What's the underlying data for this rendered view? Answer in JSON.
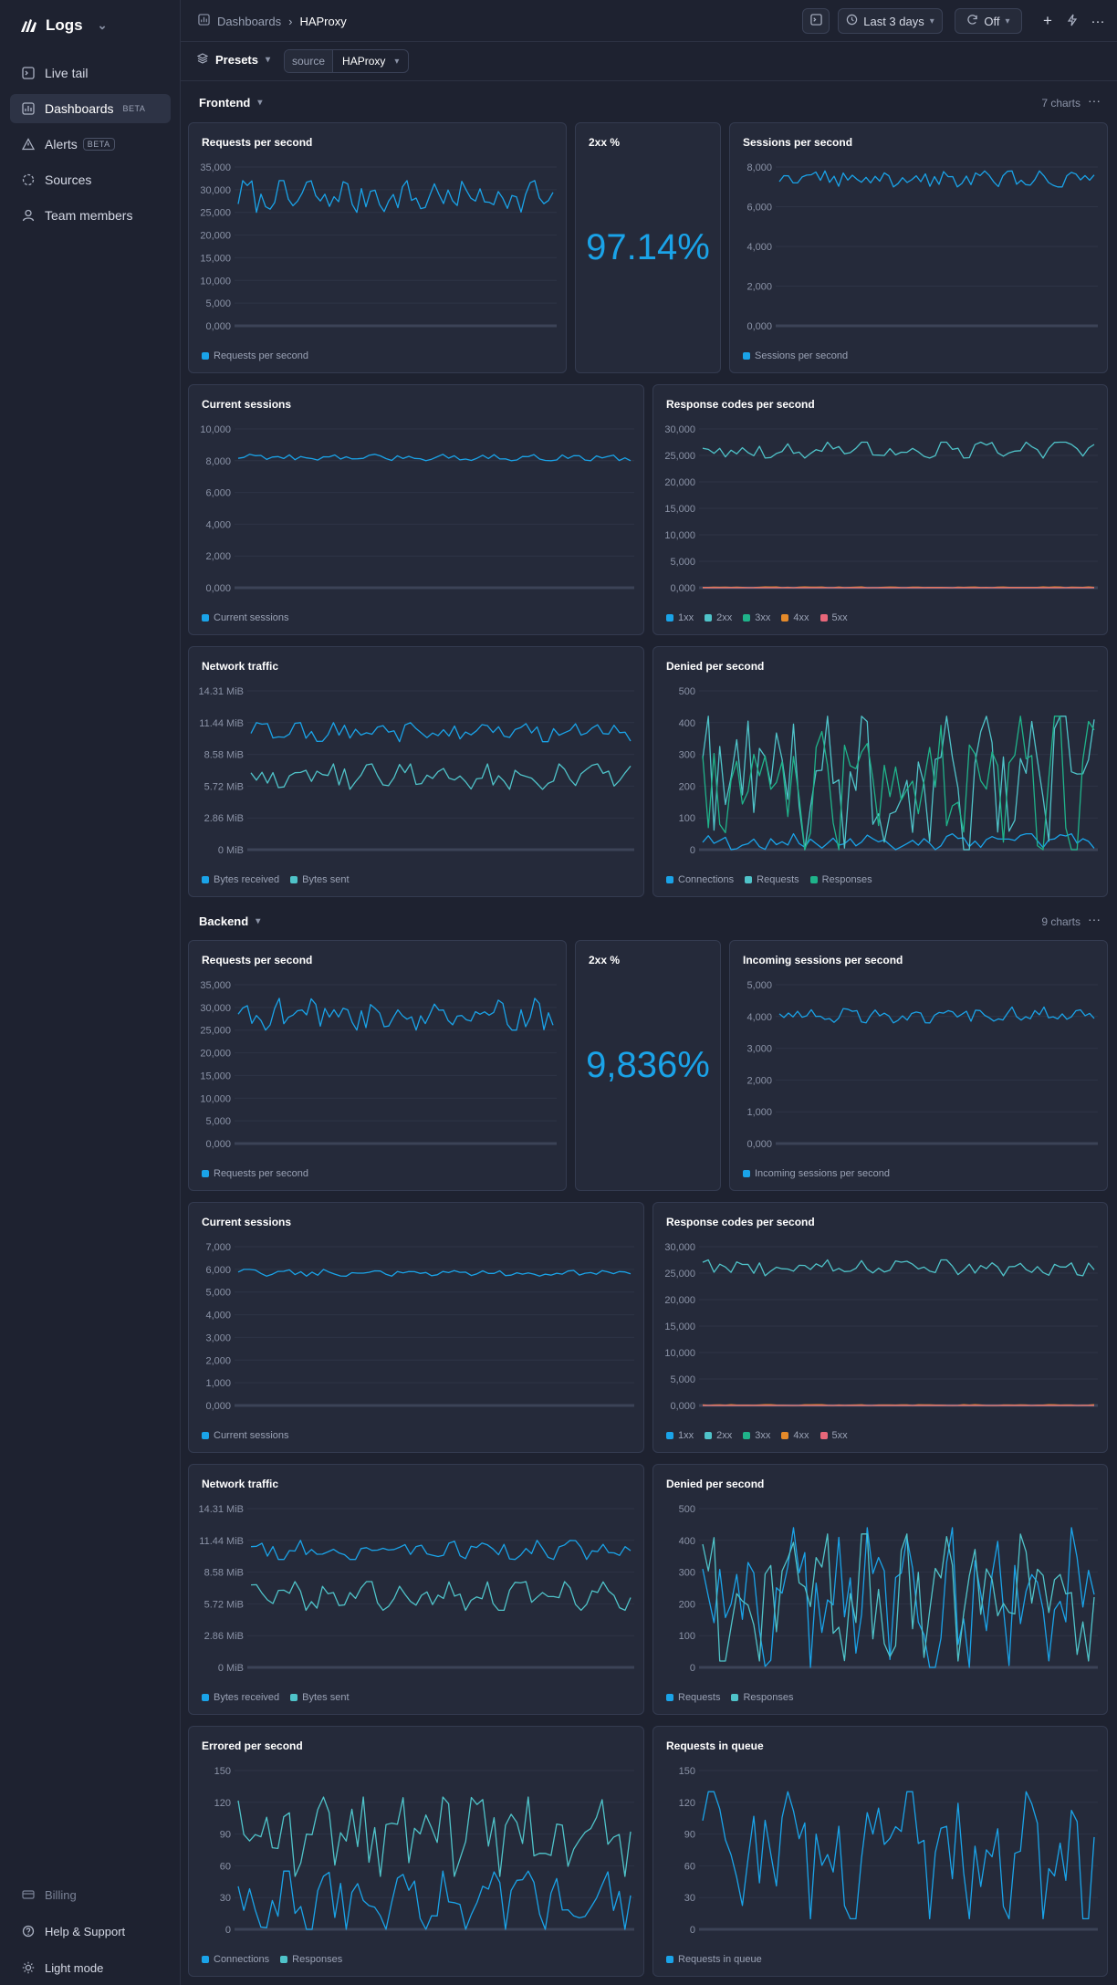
{
  "app": {
    "name": "Logs"
  },
  "sidebar": {
    "items": [
      {
        "label": "Live tail",
        "icon": "terminal-icon",
        "badge": ""
      },
      {
        "label": "Dashboards",
        "icon": "dashboard-icon",
        "badge": "BETA"
      },
      {
        "label": "Alerts",
        "icon": "alert-icon",
        "badge": "BETA"
      },
      {
        "label": "Sources",
        "icon": "sources-icon",
        "badge": ""
      },
      {
        "label": "Team members",
        "icon": "user-icon",
        "badge": ""
      }
    ],
    "bottom": [
      {
        "label": "Billing",
        "icon": "card-icon"
      },
      {
        "label": "Help & Support",
        "icon": "help-icon"
      },
      {
        "label": "Light mode",
        "icon": "sun-icon"
      }
    ]
  },
  "breadcrumb": {
    "parent": "Dashboards",
    "current": "HAProxy"
  },
  "toolbar": {
    "time_range": "Last 3 days",
    "refresh": "Off"
  },
  "filters": {
    "presets": "Presets",
    "key": "source",
    "value": "HAProxy"
  },
  "colors": {
    "blue": "#1aa3e8",
    "teal": "#4fc3c9",
    "green": "#1fb38a",
    "orange": "#e58a2a",
    "red": "#e8677a",
    "accent_stat": "#1aa3e8"
  },
  "sections": [
    {
      "title": "Frontend",
      "count": "7 charts"
    },
    {
      "title": "Backend",
      "count": "9 charts"
    }
  ],
  "stats": [
    {
      "title": "2xx %",
      "value": "97.14%"
    },
    {
      "title": "2xx %",
      "value": "9,836%"
    }
  ],
  "chart_data": [
    {
      "type": "line",
      "title": "Requests per second",
      "yticks": [
        "35,000",
        "30,000",
        "25,000",
        "20,000",
        "15,000",
        "10,000",
        "5,000",
        "0,000"
      ],
      "ylim": [
        0,
        35000
      ],
      "series": [
        {
          "name": "Requests per second",
          "color": "#1aa3e8",
          "band": [
            25000,
            32000
          ]
        }
      ]
    },
    {
      "type": "line",
      "title": "Sessions per second",
      "yticks": [
        "8,000",
        "6,000",
        "4,000",
        "2,000",
        "0,000"
      ],
      "ylim": [
        0,
        8000
      ],
      "series": [
        {
          "name": "Sessions per second",
          "color": "#1aa3e8",
          "band": [
            7000,
            7800
          ]
        }
      ]
    },
    {
      "type": "line",
      "title": "Current sessions",
      "yticks": [
        "10,000",
        "8,000",
        "6,000",
        "4,000",
        "2,000",
        "0,000"
      ],
      "ylim": [
        0,
        10000
      ],
      "series": [
        {
          "name": "Current sessions",
          "color": "#1aa3e8",
          "band": [
            8000,
            8400
          ]
        }
      ]
    },
    {
      "type": "line",
      "title": "Response codes per second",
      "yticks": [
        "30,000",
        "25,000",
        "20,000",
        "15,000",
        "10,000",
        "5,000",
        "0,000"
      ],
      "ylim": [
        0,
        30000
      ],
      "series": [
        {
          "name": "1xx",
          "color": "#1aa3e8",
          "band": [
            0,
            0
          ]
        },
        {
          "name": "2xx",
          "color": "#4fc3c9",
          "band": [
            24500,
            27500
          ]
        },
        {
          "name": "3xx",
          "color": "#1fb38a",
          "band": [
            0,
            0
          ]
        },
        {
          "name": "4xx",
          "color": "#e58a2a",
          "band": [
            0,
            150
          ]
        },
        {
          "name": "5xx",
          "color": "#e8677a",
          "band": [
            0,
            0
          ]
        }
      ]
    },
    {
      "type": "line",
      "title": "Network traffic",
      "yticks": [
        "14.31 MiB",
        "11.44 MiB",
        "8.58 MiB",
        "5.72 MiB",
        "2.86 MiB",
        "0 MiB"
      ],
      "ylim": [
        0,
        5
      ],
      "series": [
        {
          "name": "Bytes received",
          "color": "#1aa3e8",
          "band": [
            3.4,
            4
          ]
        },
        {
          "name": "Bytes sent",
          "color": "#4fc3c9",
          "band": [
            1.9,
            2.7
          ]
        }
      ]
    },
    {
      "type": "line",
      "title": "Denied per second",
      "yticks": [
        "500",
        "400",
        "300",
        "200",
        "100",
        "0"
      ],
      "ylim": [
        0,
        500
      ],
      "series": [
        {
          "name": "Connections",
          "color": "#1aa3e8",
          "band": [
            0,
            50
          ]
        },
        {
          "name": "Requests",
          "color": "#4fc3c9",
          "band": [
            0,
            420
          ]
        },
        {
          "name": "Responses",
          "color": "#1fb38a",
          "band": [
            0,
            420
          ]
        }
      ]
    },
    {
      "type": "line",
      "title": "Requests per second",
      "yticks": [
        "35,000",
        "30,000",
        "25,000",
        "20,000",
        "15,000",
        "10,000",
        "5,000",
        "0,000"
      ],
      "ylim": [
        0,
        35000
      ],
      "series": [
        {
          "name": "Requests per second",
          "color": "#1aa3e8",
          "band": [
            25000,
            32000
          ]
        }
      ]
    },
    {
      "type": "line",
      "title": "Incoming sessions per second",
      "yticks": [
        "5,000",
        "4,000",
        "3,000",
        "2,000",
        "1,000",
        "0,000"
      ],
      "ylim": [
        0,
        5000
      ],
      "series": [
        {
          "name": "Incoming sessions per second",
          "color": "#1aa3e8",
          "band": [
            3800,
            4300
          ]
        }
      ]
    },
    {
      "type": "line",
      "title": "Current sessions",
      "yticks": [
        "7,000",
        "6,000",
        "5,000",
        "4,000",
        "3,000",
        "2,000",
        "1,000",
        "0,000"
      ],
      "ylim": [
        0,
        7000
      ],
      "series": [
        {
          "name": "Current sessions",
          "color": "#1aa3e8",
          "band": [
            5700,
            6000
          ]
        }
      ]
    },
    {
      "type": "line",
      "title": "Response codes per second",
      "yticks": [
        "30,000",
        "25,000",
        "20,000",
        "15,000",
        "10,000",
        "5,000",
        "0,000"
      ],
      "ylim": [
        0,
        30000
      ],
      "series": [
        {
          "name": "1xx",
          "color": "#1aa3e8",
          "band": [
            0,
            0
          ]
        },
        {
          "name": "2xx",
          "color": "#4fc3c9",
          "band": [
            24500,
            27500
          ]
        },
        {
          "name": "3xx",
          "color": "#1fb38a",
          "band": [
            0,
            0
          ]
        },
        {
          "name": "4xx",
          "color": "#e58a2a",
          "band": [
            0,
            150
          ]
        },
        {
          "name": "5xx",
          "color": "#e8677a",
          "band": [
            0,
            0
          ]
        }
      ]
    },
    {
      "type": "line",
      "title": "Network traffic",
      "yticks": [
        "14.31 MiB",
        "11.44 MiB",
        "8.58 MiB",
        "5.72 MiB",
        "2.86 MiB",
        "0 MiB"
      ],
      "ylim": [
        0,
        5
      ],
      "series": [
        {
          "name": "Bytes received",
          "color": "#1aa3e8",
          "band": [
            3.4,
            4
          ]
        },
        {
          "name": "Bytes sent",
          "color": "#4fc3c9",
          "band": [
            1.8,
            2.7
          ]
        }
      ]
    },
    {
      "type": "line",
      "title": "Denied per second",
      "yticks": [
        "500",
        "400",
        "300",
        "200",
        "100",
        "0"
      ],
      "ylim": [
        0,
        500
      ],
      "series": [
        {
          "name": "Requests",
          "color": "#1aa3e8",
          "band": [
            0,
            440
          ]
        },
        {
          "name": "Responses",
          "color": "#4fc3c9",
          "band": [
            20,
            420
          ]
        }
      ]
    },
    {
      "type": "line",
      "title": "Errored per second",
      "yticks": [
        "150",
        "120",
        "90",
        "60",
        "30",
        "0"
      ],
      "ylim": [
        0,
        150
      ],
      "series": [
        {
          "name": "Connections",
          "color": "#1aa3e8",
          "band": [
            0,
            55
          ]
        },
        {
          "name": "Responses",
          "color": "#4fc3c9",
          "band": [
            50,
            125
          ]
        }
      ]
    },
    {
      "type": "line",
      "title": "Requests in queue",
      "yticks": [
        "150",
        "120",
        "90",
        "60",
        "30",
        "0"
      ],
      "ylim": [
        0,
        150
      ],
      "series": [
        {
          "name": "Requests in queue",
          "color": "#1aa3e8",
          "band": [
            10,
            130
          ]
        }
      ]
    }
  ]
}
